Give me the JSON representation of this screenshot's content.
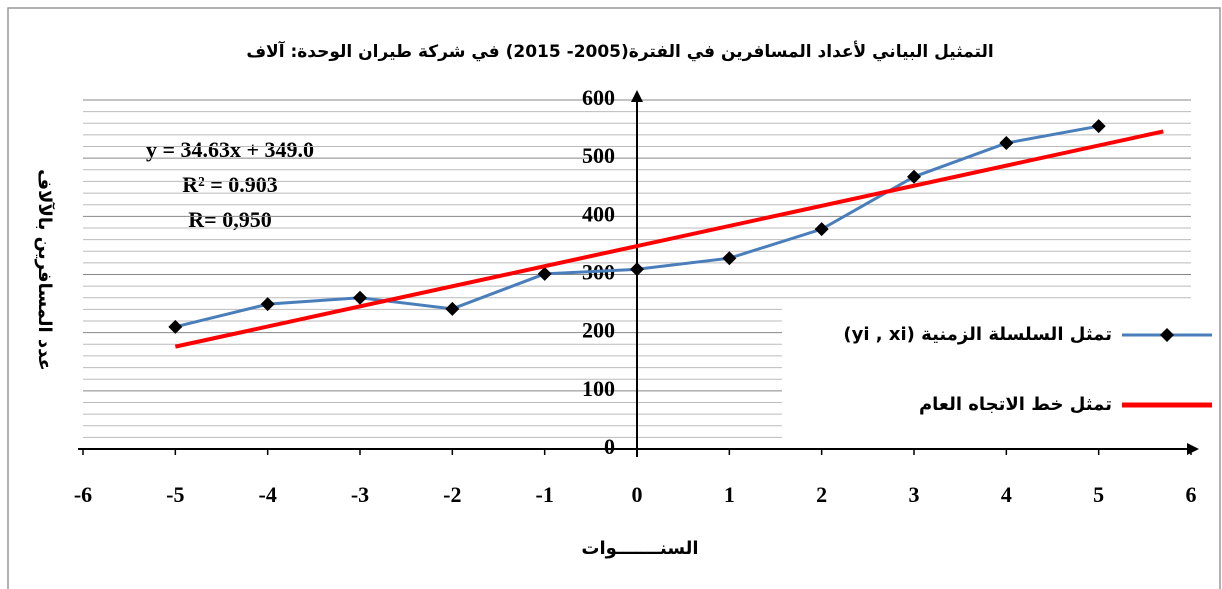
{
  "chart_data": {
    "type": "line",
    "title": "التمثيل البياني لأعداد المسافرين في الفترة(2005- 2015) في شركة طيران الوحدة: آلاف",
    "xlabel": "السنـــــــوات",
    "ylabel": "عدد المسافرين بالآلاف",
    "annotations": [
      "y = 34.63x + 349.0",
      "R² = 0.903",
      "R= 0,950"
    ],
    "xlim": [
      -6,
      6
    ],
    "xticks": [
      -6,
      -5,
      -4,
      -3,
      -2,
      -1,
      0,
      1,
      2,
      3,
      4,
      5,
      6
    ],
    "ylim": [
      0,
      600
    ],
    "yticks": [
      0,
      100,
      200,
      300,
      400,
      500,
      600
    ],
    "grid": true,
    "legend": "right",
    "series": [
      {
        "name": "تمثل السلسلة الزمنية (yi , xi)",
        "color": "#4a7ebb",
        "marker": "diamond",
        "x": [
          -5,
          -4,
          -3,
          -2,
          -1,
          0,
          1,
          2,
          3,
          4,
          5
        ],
        "values": [
          210,
          249,
          260,
          241,
          301,
          309,
          328,
          378,
          468,
          526,
          555
        ]
      },
      {
        "name": "تمثل خط الاتجاه العام",
        "color": "#ff0000",
        "x": [
          -5,
          5.7
        ],
        "values": [
          176,
          546
        ]
      }
    ]
  }
}
